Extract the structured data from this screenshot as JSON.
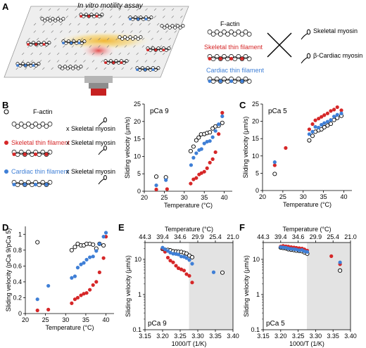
{
  "panel_labels": {
    "a": "A",
    "b": "B",
    "c": "C",
    "d": "D",
    "e": "E",
    "f": "F"
  },
  "panel_a": {
    "assay_title": "In vitro motility assay",
    "filaments": [
      "F-actin",
      "Skeletal thin filament",
      "Cardiac thin filament"
    ],
    "myosins": [
      "Skeletal myosin",
      "β-Cardiac myosin"
    ],
    "cross": "X",
    "colors": {
      "f_actin": "#000000",
      "skeletal": "#d62728",
      "cardiac": "#3f7fd6"
    }
  },
  "panel_b_legend": {
    "rows": [
      {
        "filament": "F-actin",
        "myosin": "x Skeletal myosin"
      },
      {
        "filament": "Skeletal thin filament",
        "myosin": "x Skeletal myosin"
      },
      {
        "filament": "Cardiac thin filament",
        "myosin": "x Skeletal myosin"
      }
    ]
  },
  "chart_data": [
    {
      "id": "B",
      "type": "scatter",
      "inset": "pCa 9",
      "xlabel": "Temperature (°C)",
      "ylabel": "Sliding velocity (μm/s)",
      "xlim": [
        20,
        42
      ],
      "ylim": [
        0,
        25
      ],
      "xticks": [
        20,
        25,
        30,
        35,
        40
      ],
      "yticks": [
        0,
        5,
        10,
        15,
        20,
        25
      ],
      "series": [
        {
          "marker": "open-circle",
          "values": [
            [
              23,
              4.2
            ],
            [
              25.4,
              4
            ],
            [
              31.6,
              11.5
            ],
            [
              32.3,
              12.8
            ],
            [
              33,
              14.6
            ],
            [
              33.6,
              15.4
            ],
            [
              34.2,
              16.3
            ],
            [
              35,
              16.4
            ],
            [
              35.7,
              16.7
            ],
            [
              36.4,
              16.9
            ],
            [
              37.1,
              18
            ],
            [
              37.8,
              18.6
            ],
            [
              38.6,
              18.8
            ],
            [
              39.5,
              19.6
            ]
          ]
        },
        {
          "color": "#d62728",
          "values": [
            [
              23,
              0.5
            ],
            [
              25.7,
              0.6
            ],
            [
              31.6,
              2.2
            ],
            [
              32.3,
              3.4
            ],
            [
              33,
              3.8
            ],
            [
              33.7,
              4.8
            ],
            [
              34.3,
              5.2
            ],
            [
              35,
              5.6
            ],
            [
              35.7,
              6.6
            ],
            [
              36.4,
              8.2
            ],
            [
              37.1,
              9.2
            ],
            [
              37.8,
              11.2
            ],
            [
              38.6,
              16.4
            ],
            [
              39.5,
              22.5
            ]
          ]
        },
        {
          "color": "#3f7fd6",
          "values": [
            [
              23,
              1.7
            ],
            [
              25.4,
              3.2
            ],
            [
              31.7,
              7.5
            ],
            [
              32.3,
              9.6
            ],
            [
              33,
              10.9
            ],
            [
              33.7,
              11.8
            ],
            [
              34.3,
              12.1
            ],
            [
              35,
              13.7
            ],
            [
              35.7,
              14.2
            ],
            [
              36.4,
              14.4
            ],
            [
              37.1,
              15.5
            ],
            [
              37.8,
              17.3
            ],
            [
              38.6,
              19.2
            ],
            [
              39.5,
              21.5
            ]
          ]
        }
      ]
    },
    {
      "id": "C",
      "type": "scatter",
      "inset": "pCa 5",
      "xlabel": "Temperature (°C)",
      "ylabel": "Sliding velocity (μm/s)",
      "xlim": [
        20,
        42
      ],
      "ylim": [
        0,
        25
      ],
      "xticks": [
        20,
        25,
        30,
        35,
        40
      ],
      "yticks": [
        0,
        5,
        10,
        15,
        20,
        25
      ],
      "series": [
        {
          "marker": "open-circle",
          "values": [
            [
              23,
              4.8
            ],
            [
              31.5,
              14.5
            ],
            [
              32.3,
              15.8
            ],
            [
              33,
              17
            ],
            [
              33.8,
              17.4
            ],
            [
              34.5,
              17.7
            ],
            [
              35.2,
              18.3
            ],
            [
              36,
              18.8
            ],
            [
              36.8,
              19.3
            ],
            [
              37.6,
              20.4
            ],
            [
              38.4,
              21
            ],
            [
              39.4,
              21.6
            ]
          ]
        },
        {
          "color": "#d62728",
          "values": [
            [
              23,
              7.3
            ],
            [
              25.7,
              12.3
            ],
            [
              31.5,
              17.7
            ],
            [
              32.3,
              19.2
            ],
            [
              33,
              20.3
            ],
            [
              33.8,
              20.8
            ],
            [
              34.5,
              21.3
            ],
            [
              35.2,
              21.8
            ],
            [
              36,
              22.3
            ],
            [
              36.8,
              23
            ],
            [
              37.6,
              23.4
            ],
            [
              38.4,
              24.1
            ],
            [
              39.4,
              23.2
            ]
          ]
        },
        {
          "color": "#3f7fd6",
          "values": [
            [
              23,
              8.2
            ],
            [
              31.5,
              16.3
            ],
            [
              32.3,
              17
            ],
            [
              33,
              18.4
            ],
            [
              33.8,
              18.2
            ],
            [
              34.5,
              19
            ],
            [
              35.2,
              19.5
            ],
            [
              36,
              19.9
            ],
            [
              36.8,
              20.4
            ],
            [
              37.6,
              21.4
            ],
            [
              38.4,
              21.9
            ],
            [
              39.4,
              22.3
            ]
          ]
        }
      ]
    },
    {
      "id": "D",
      "type": "scatter",
      "xlabel": "Temperature (°C)",
      "ylabel": "Sliding velocity (pCa 9/pCa 5)",
      "xlim": [
        20,
        42
      ],
      "ylim": [
        0,
        1.1
      ],
      "xticks": [
        20,
        25,
        30,
        35,
        40
      ],
      "yticks": [
        0,
        0.2,
        0.4,
        0.6,
        0.8,
        1
      ],
      "series": [
        {
          "marker": "open-circle",
          "values": [
            [
              23,
              0.9
            ],
            [
              31.5,
              0.8
            ],
            [
              32.3,
              0.84
            ],
            [
              33,
              0.88
            ],
            [
              33.8,
              0.86
            ],
            [
              34.5,
              0.86
            ],
            [
              35.2,
              0.88
            ],
            [
              36,
              0.88
            ],
            [
              36.8,
              0.87
            ],
            [
              37.6,
              0.82
            ],
            [
              38.4,
              0.88
            ],
            [
              39.4,
              0.86
            ]
          ]
        },
        {
          "color": "#d62728",
          "values": [
            [
              23,
              0.04
            ],
            [
              25.7,
              0.05
            ],
            [
              31.5,
              0.13
            ],
            [
              32.3,
              0.18
            ],
            [
              33,
              0.2
            ],
            [
              33.8,
              0.23
            ],
            [
              34.5,
              0.25
            ],
            [
              35.2,
              0.26
            ],
            [
              36,
              0.3
            ],
            [
              36.8,
              0.36
            ],
            [
              37.6,
              0.4
            ],
            [
              38.4,
              0.52
            ],
            [
              39.4,
              0.7
            ],
            [
              40,
              0.97
            ]
          ]
        },
        {
          "color": "#3f7fd6",
          "values": [
            [
              23,
              0.18
            ],
            [
              25.7,
              0.35
            ],
            [
              31.5,
              0.45
            ],
            [
              32.3,
              0.47
            ],
            [
              33,
              0.58
            ],
            [
              33.8,
              0.62
            ],
            [
              34.5,
              0.64
            ],
            [
              35.2,
              0.68
            ],
            [
              36,
              0.71
            ],
            [
              36.8,
              0.72
            ],
            [
              37.6,
              0.79
            ],
            [
              38.4,
              0.88
            ],
            [
              39.4,
              0.97
            ],
            [
              40,
              1.02
            ]
          ]
        }
      ]
    },
    {
      "id": "E",
      "type": "scatter",
      "inset": "pCa 9",
      "xlabel": "1000/T (1/K)",
      "ylabel": "Sliding velocity (μm/s)",
      "top_xlabel": "Temperature (°C)",
      "yscale": "log",
      "xlim": [
        3.15,
        3.4
      ],
      "ylim": [
        0.1,
        30
      ],
      "xticks": [
        "3.15",
        "3.20",
        "3.25",
        "3.30",
        "3.35",
        "3.40"
      ],
      "top_xticks": [
        "44.3",
        "39.4",
        "34.6",
        "29.9",
        "25.4",
        "21.0"
      ],
      "yticks": [
        "0.1",
        "1",
        "10"
      ],
      "shaded_from": 3.275,
      "series": [
        {
          "marker": "open-circle",
          "values": [
            [
              3.2,
              19.6
            ],
            [
              3.207,
              18.8
            ],
            [
              3.215,
              18.6
            ],
            [
              3.222,
              18
            ],
            [
              3.23,
              16.9
            ],
            [
              3.238,
              16.7
            ],
            [
              3.245,
              16.4
            ],
            [
              3.253,
              16.3
            ],
            [
              3.261,
              15.4
            ],
            [
              3.268,
              14.6
            ],
            [
              3.276,
              12.8
            ],
            [
              3.284,
              11.5
            ],
            [
              3.37,
              4.2
            ]
          ]
        },
        {
          "color": "#d62728",
          "values": [
            [
              3.2,
              20
            ],
            [
              3.207,
              16.4
            ],
            [
              3.215,
              11.2
            ],
            [
              3.222,
              9.2
            ],
            [
              3.23,
              8.2
            ],
            [
              3.238,
              6.6
            ],
            [
              3.245,
              5.6
            ],
            [
              3.253,
              5.2
            ],
            [
              3.261,
              4.8
            ],
            [
              3.268,
              3.8
            ],
            [
              3.276,
              3.4
            ],
            [
              3.284,
              2.2
            ]
          ]
        },
        {
          "color": "#3f7fd6",
          "values": [
            [
              3.2,
              21.5
            ],
            [
              3.207,
              19.2
            ],
            [
              3.215,
              17.3
            ],
            [
              3.222,
              15.5
            ],
            [
              3.23,
              14.4
            ],
            [
              3.238,
              14.2
            ],
            [
              3.245,
              13.7
            ],
            [
              3.253,
              12.1
            ],
            [
              3.261,
              11.8
            ],
            [
              3.268,
              10.9
            ],
            [
              3.276,
              9.6
            ],
            [
              3.284,
              7.5
            ],
            [
              3.345,
              4.3
            ]
          ]
        }
      ]
    },
    {
      "id": "F",
      "type": "scatter",
      "inset": "pCa 5",
      "xlabel": "1000/T (1/K)",
      "ylabel": "Sliding velocity (μm/s)",
      "top_xlabel": "Temperature (°C)",
      "yscale": "log",
      "xlim": [
        3.15,
        3.4
      ],
      "ylim": [
        0.1,
        30
      ],
      "xticks": [
        "3.15",
        "3.20",
        "3.25",
        "3.30",
        "3.35",
        "3.40"
      ],
      "top_xticks": [
        "44.3",
        "39.4",
        "34.6",
        "29.9",
        "25.4",
        "21.0"
      ],
      "yticks": [
        "0.1",
        "1",
        "10"
      ],
      "shaded_from": 3.275,
      "series": [
        {
          "marker": "open-circle",
          "values": [
            [
              3.2,
              21.6
            ],
            [
              3.207,
              21
            ],
            [
              3.215,
              20.4
            ],
            [
              3.222,
              19.3
            ],
            [
              3.23,
              18.8
            ],
            [
              3.238,
              18.3
            ],
            [
              3.245,
              17.7
            ],
            [
              3.253,
              17.4
            ],
            [
              3.261,
              17
            ],
            [
              3.268,
              15.8
            ],
            [
              3.276,
              14.5
            ],
            [
              3.37,
              4.8
            ]
          ]
        },
        {
          "color": "#d62728",
          "values": [
            [
              3.2,
              23.2
            ],
            [
              3.207,
              24.1
            ],
            [
              3.215,
              23.4
            ],
            [
              3.222,
              23
            ],
            [
              3.23,
              22.3
            ],
            [
              3.238,
              21.8
            ],
            [
              3.245,
              21.3
            ],
            [
              3.253,
              20.8
            ],
            [
              3.261,
              20.3
            ],
            [
              3.268,
              19.2
            ],
            [
              3.276,
              17.7
            ],
            [
              3.345,
              12.3
            ],
            [
              3.37,
              7.3
            ]
          ]
        },
        {
          "color": "#3f7fd6",
          "values": [
            [
              3.2,
              22.3
            ],
            [
              3.207,
              21.9
            ],
            [
              3.215,
              21.4
            ],
            [
              3.222,
              20.4
            ],
            [
              3.23,
              19.9
            ],
            [
              3.238,
              19.5
            ],
            [
              3.245,
              19
            ],
            [
              3.253,
              18.2
            ],
            [
              3.261,
              18.4
            ],
            [
              3.268,
              17
            ],
            [
              3.276,
              16.3
            ],
            [
              3.37,
              8.2
            ]
          ]
        }
      ]
    }
  ]
}
